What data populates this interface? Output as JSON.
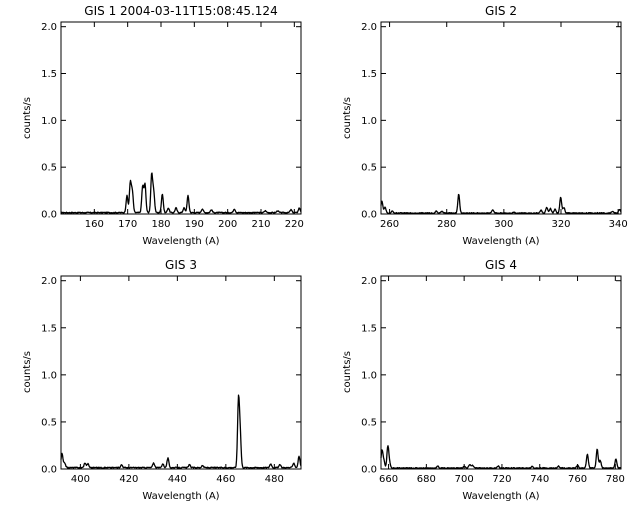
{
  "figure": {
    "background": "#ffffff",
    "foreground": "#000000"
  },
  "chart_data": [
    {
      "type": "line",
      "title": "GIS 1 2004-03-11T15:08:45.124",
      "xlabel": "Wavelength (A)",
      "ylabel": "counts/s",
      "xlim": [
        150,
        222
      ],
      "ylim": [
        0,
        2.05
      ],
      "xticks": [
        160,
        170,
        180,
        190,
        200,
        210,
        220
      ],
      "xtick_labels": [
        "160",
        "170",
        "180",
        "190",
        "200",
        "210",
        "220"
      ],
      "yticks": [
        0.0,
        0.5,
        1.0,
        1.5,
        2.0
      ],
      "ytick_labels": [
        "0.0",
        "0.5",
        "1.0",
        "1.5",
        "2.0"
      ],
      "grid": false,
      "background": [
        0.01,
        0.015,
        0.02
      ],
      "peaks": [
        {
          "x": 169.8,
          "y": 0.18
        },
        {
          "x": 170.8,
          "y": 0.32
        },
        {
          "x": 171.4,
          "y": 0.22
        },
        {
          "x": 174.5,
          "y": 0.28
        },
        {
          "x": 175.2,
          "y": 0.3
        },
        {
          "x": 177.2,
          "y": 0.4
        },
        {
          "x": 177.8,
          "y": 0.22
        },
        {
          "x": 180.4,
          "y": 0.2
        },
        {
          "x": 182.2,
          "y": 0.05
        },
        {
          "x": 184.5,
          "y": 0.05
        },
        {
          "x": 186.9,
          "y": 0.05
        },
        {
          "x": 188.1,
          "y": 0.18
        },
        {
          "x": 192.4,
          "y": 0.04
        },
        {
          "x": 195.1,
          "y": 0.03
        },
        {
          "x": 202.0,
          "y": 0.04
        },
        {
          "x": 211.3,
          "y": 0.02
        },
        {
          "x": 215.0,
          "y": 0.02
        },
        {
          "x": 219.0,
          "y": 0.03
        },
        {
          "x": 221.5,
          "y": 0.05
        }
      ]
    },
    {
      "type": "line",
      "title": "GIS 2",
      "xlabel": "Wavelength (A)",
      "ylabel": "counts/s",
      "xlim": [
        257,
        341
      ],
      "ylim": [
        0,
        2.05
      ],
      "xticks": [
        260,
        280,
        300,
        320,
        340
      ],
      "xtick_labels": [
        "260",
        "280",
        "300",
        "320",
        "340"
      ],
      "yticks": [
        0.0,
        0.5,
        1.0,
        1.5,
        2.0
      ],
      "ytick_labels": [
        "0.0",
        "0.5",
        "1.0",
        "1.5",
        "2.0"
      ],
      "grid": false,
      "background": [
        0.005,
        0.01,
        0.015
      ],
      "peaks": [
        {
          "x": 257.3,
          "y": 0.13
        },
        {
          "x": 258.4,
          "y": 0.06
        },
        {
          "x": 261.0,
          "y": 0.02
        },
        {
          "x": 276.4,
          "y": 0.02
        },
        {
          "x": 278.4,
          "y": 0.02
        },
        {
          "x": 284.2,
          "y": 0.2
        },
        {
          "x": 296.1,
          "y": 0.03
        },
        {
          "x": 303.5,
          "y": 0.01
        },
        {
          "x": 313.0,
          "y": 0.03
        },
        {
          "x": 315.0,
          "y": 0.06
        },
        {
          "x": 316.3,
          "y": 0.05
        },
        {
          "x": 317.9,
          "y": 0.04
        },
        {
          "x": 319.9,
          "y": 0.17
        },
        {
          "x": 321.0,
          "y": 0.06
        },
        {
          "x": 338.0,
          "y": 0.02
        },
        {
          "x": 340.5,
          "y": 0.04
        }
      ]
    },
    {
      "type": "line",
      "title": "GIS 3",
      "xlabel": "Wavelength (A)",
      "ylabel": "counts/s",
      "xlim": [
        392,
        491
      ],
      "ylim": [
        0,
        2.05
      ],
      "xticks": [
        400,
        420,
        440,
        460,
        480
      ],
      "xtick_labels": [
        "400",
        "420",
        "440",
        "460",
        "480"
      ],
      "yticks": [
        0.0,
        0.5,
        1.0,
        1.5,
        2.0
      ],
      "ytick_labels": [
        "0.0",
        "0.5",
        "1.0",
        "1.5",
        "2.0"
      ],
      "grid": false,
      "background": [
        0.01,
        0.015,
        0.02
      ],
      "peaks": [
        {
          "x": 392.4,
          "y": 0.15
        },
        {
          "x": 393.5,
          "y": 0.05
        },
        {
          "x": 401.9,
          "y": 0.05
        },
        {
          "x": 403.1,
          "y": 0.04
        },
        {
          "x": 417.0,
          "y": 0.03
        },
        {
          "x": 430.2,
          "y": 0.05
        },
        {
          "x": 434.0,
          "y": 0.04
        },
        {
          "x": 436.1,
          "y": 0.1
        },
        {
          "x": 445.0,
          "y": 0.03
        },
        {
          "x": 450.4,
          "y": 0.02
        },
        {
          "x": 465.2,
          "y": 0.7
        },
        {
          "x": 465.9,
          "y": 0.35
        },
        {
          "x": 478.5,
          "y": 0.04
        },
        {
          "x": 482.3,
          "y": 0.03
        },
        {
          "x": 488.0,
          "y": 0.05
        },
        {
          "x": 490.2,
          "y": 0.12
        }
      ]
    },
    {
      "type": "line",
      "title": "GIS 4",
      "xlabel": "Wavelength (A)",
      "ylabel": "counts/s",
      "xlim": [
        656,
        783
      ],
      "ylim": [
        0,
        2.05
      ],
      "xticks": [
        660,
        680,
        700,
        720,
        740,
        760,
        780
      ],
      "xtick_labels": [
        "660",
        "680",
        "700",
        "720",
        "740",
        "760",
        "780"
      ],
      "yticks": [
        0.0,
        0.5,
        1.0,
        1.5,
        2.0
      ],
      "ytick_labels": [
        "0.0",
        "0.5",
        "1.0",
        "1.5",
        "2.0"
      ],
      "grid": false,
      "background": [
        0.005,
        0.01,
        0.015
      ],
      "peaks": [
        {
          "x": 656.5,
          "y": 0.18
        },
        {
          "x": 657.5,
          "y": 0.08
        },
        {
          "x": 659.6,
          "y": 0.22
        },
        {
          "x": 660.4,
          "y": 0.06
        },
        {
          "x": 686.0,
          "y": 0.02
        },
        {
          "x": 700.0,
          "y": 0.02
        },
        {
          "x": 703.0,
          "y": 0.04
        },
        {
          "x": 704.5,
          "y": 0.03
        },
        {
          "x": 718.0,
          "y": 0.02
        },
        {
          "x": 736.0,
          "y": 0.02
        },
        {
          "x": 750.0,
          "y": 0.02
        },
        {
          "x": 760.0,
          "y": 0.03
        },
        {
          "x": 765.2,
          "y": 0.15
        },
        {
          "x": 770.4,
          "y": 0.2
        },
        {
          "x": 772.0,
          "y": 0.08
        },
        {
          "x": 780.3,
          "y": 0.1
        }
      ]
    }
  ]
}
